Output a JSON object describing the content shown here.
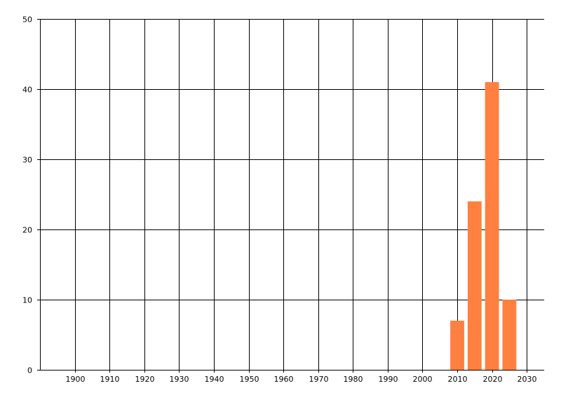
{
  "chart_data": {
    "type": "bar",
    "title": "",
    "xlabel": "",
    "ylabel": "",
    "x": [
      2010,
      2015,
      2020,
      2025
    ],
    "values": [
      7,
      24,
      41,
      10
    ],
    "bar_width_years": 4,
    "xlim": [
      1890,
      2035
    ],
    "ylim": [
      0,
      50
    ],
    "xticks": [
      1900,
      1910,
      1920,
      1930,
      1940,
      1950,
      1960,
      1970,
      1980,
      1990,
      2000,
      2010,
      2020,
      2030
    ],
    "yticks": [
      0,
      10,
      20,
      30,
      40,
      50
    ],
    "grid": true,
    "bar_color": "#FF8040",
    "grid_color": "#000000"
  }
}
